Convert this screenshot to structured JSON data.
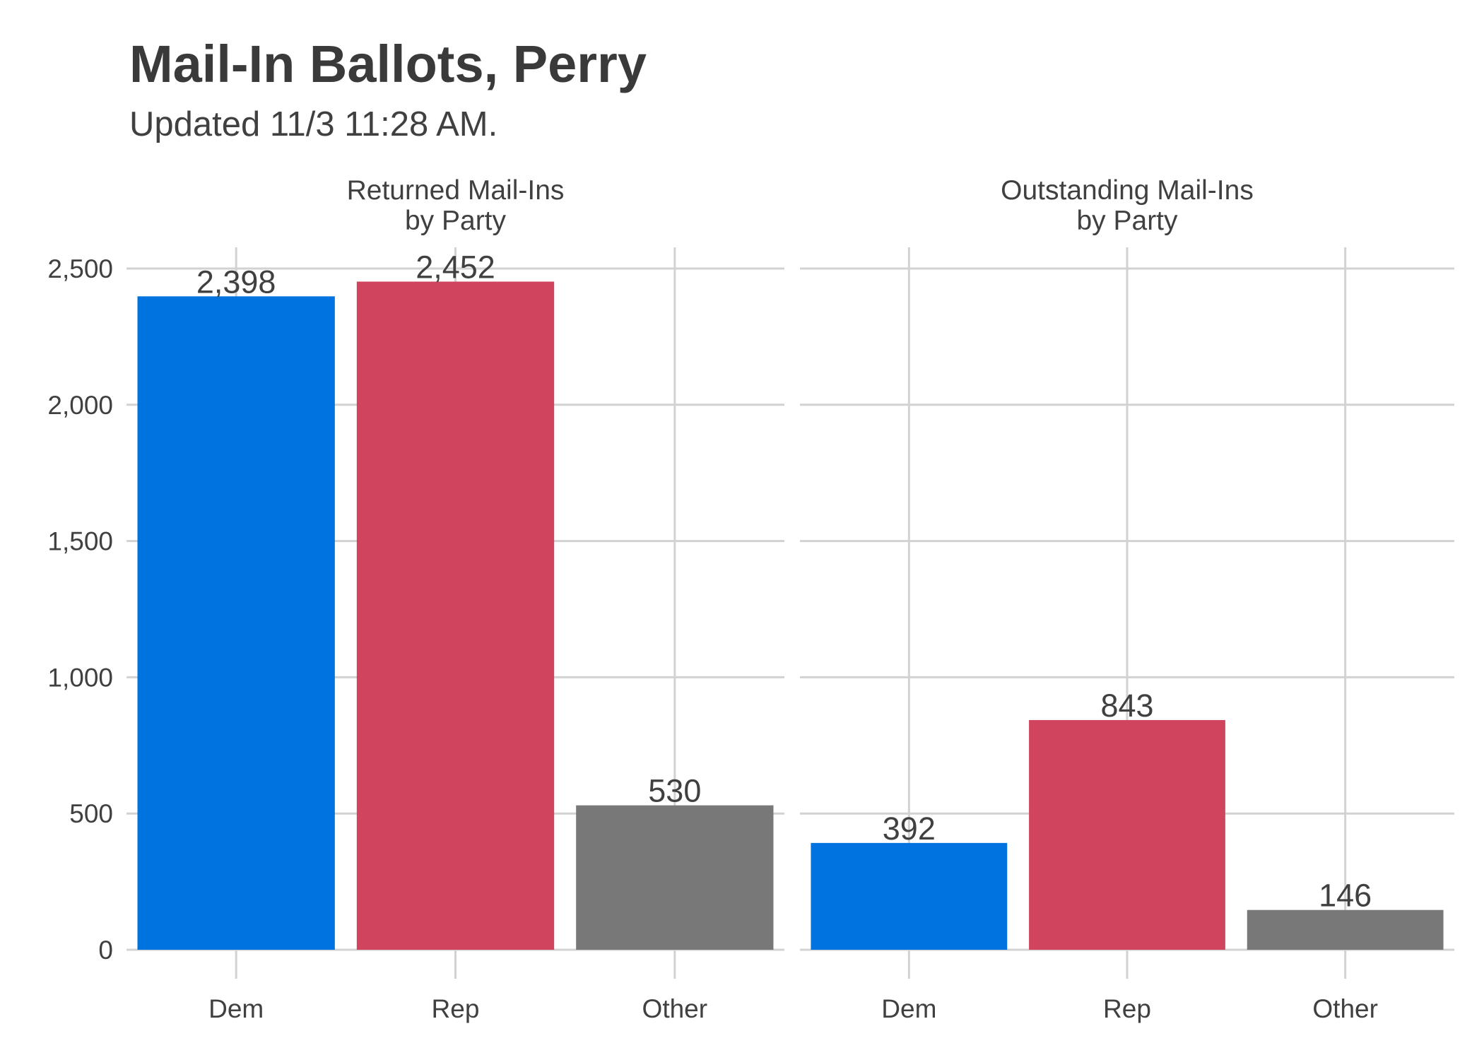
{
  "title": "Mail-In Ballots, Perry",
  "subtitle": "Updated 11/3 11:28 AM.",
  "chart_data": {
    "type": "bar",
    "categories": [
      "Dem",
      "Rep",
      "Other"
    ],
    "colors": [
      "#0073e1",
      "#d1445e",
      "#787878"
    ],
    "ylim": [
      0,
      2500
    ],
    "yticks": [
      0,
      500,
      1000,
      1500,
      2000,
      2500
    ],
    "ytick_labels": [
      "0",
      "500",
      "1,000",
      "1,500",
      "2,000",
      "2,500"
    ],
    "grid": true,
    "panels": [
      {
        "title_lines": [
          "Returned Mail-Ins",
          "by Party"
        ],
        "values": [
          2398,
          2452,
          530
        ],
        "labels": [
          "2,398",
          "2,452",
          "530"
        ]
      },
      {
        "title_lines": [
          "Outstanding Mail-Ins",
          "by Party"
        ],
        "values": [
          392,
          843,
          146
        ],
        "labels": [
          "392",
          "843",
          "146"
        ]
      }
    ]
  }
}
